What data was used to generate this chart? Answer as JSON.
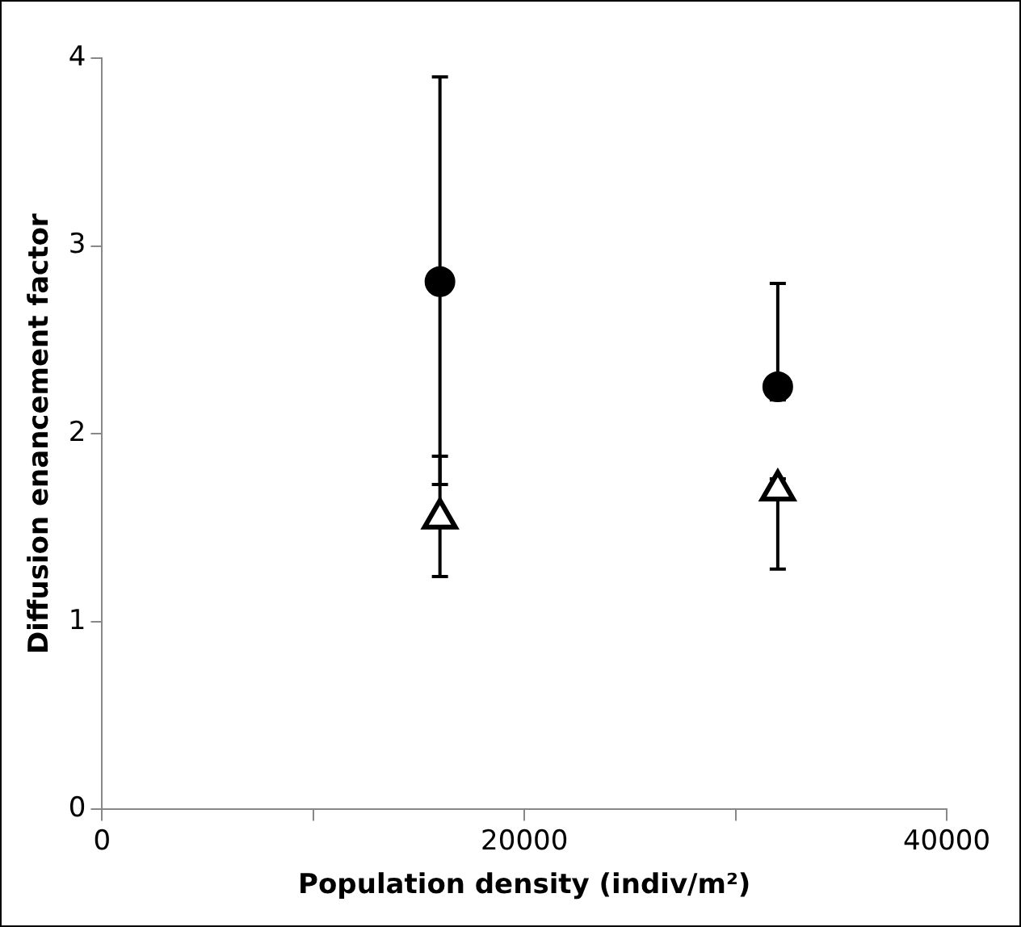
{
  "chart_data": {
    "type": "scatter",
    "xlabel": "Population density (indiv/m²)",
    "ylabel": "Diffusion enancement factor",
    "x": [
      16000,
      32000
    ],
    "xlim": [
      0,
      40000
    ],
    "xticks": [
      0,
      {
        "value": 10000,
        "label": null
      },
      20000,
      {
        "value": 30000,
        "label": null
      },
      40000
    ],
    "ylim": [
      0,
      4
    ],
    "yticks": [
      0,
      1,
      2,
      3,
      4
    ],
    "grid": false,
    "legend": false,
    "series": [
      {
        "color": "#000000",
        "marker": "circle",
        "values": [
          2.81,
          2.25
        ],
        "errors": [
          [
            1.73,
            3.9
          ],
          [
            2.18,
            2.8
          ]
        ]
      },
      {
        "color": "#000000",
        "marker": "triangle",
        "values": [
          1.55,
          1.7
        ],
        "errors": [
          [
            1.24,
            1.88
          ],
          [
            1.28,
            1.76
          ]
        ]
      }
    ]
  }
}
